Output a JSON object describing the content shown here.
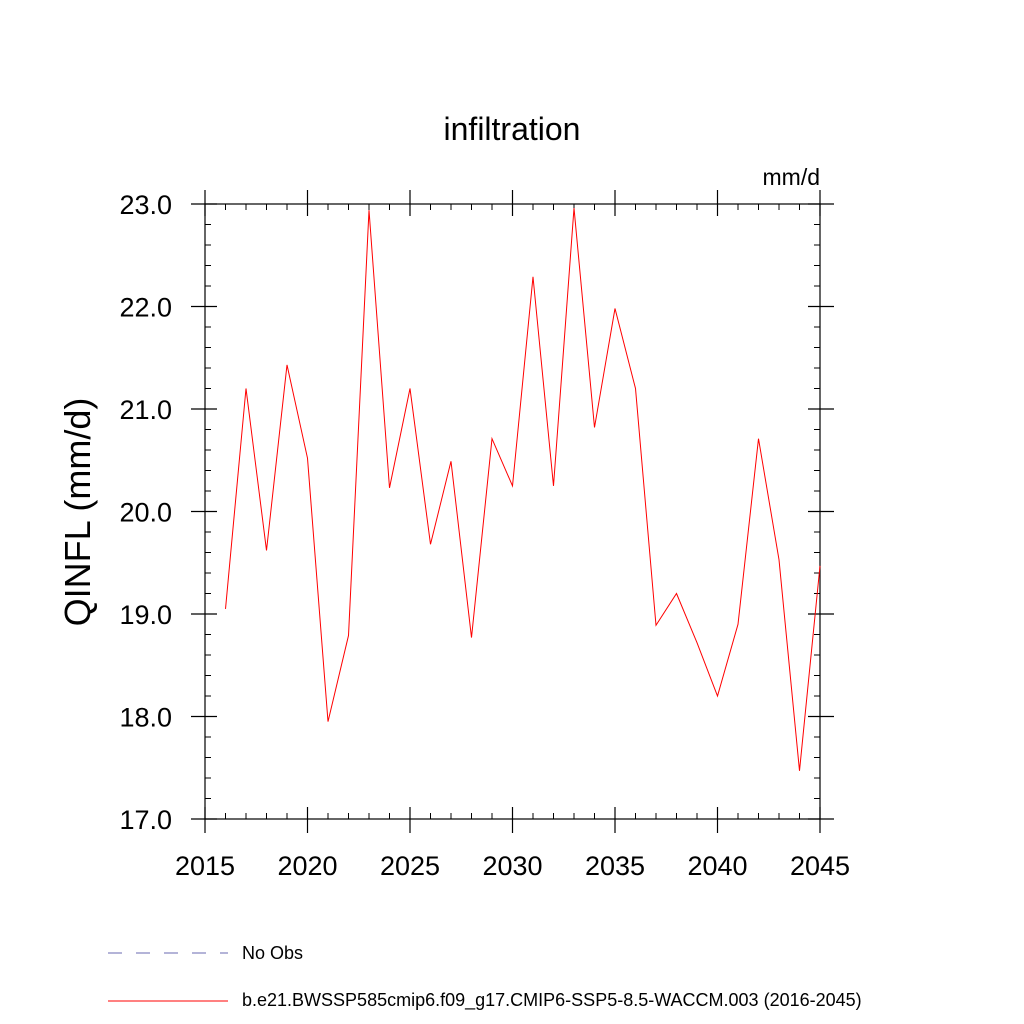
{
  "chart_data": {
    "type": "line",
    "title": "infiltration",
    "units": "mm/d",
    "xlabel": "",
    "ylabel": "QINFL  (mm/d)",
    "xlim": [
      2015,
      2045
    ],
    "ylim": [
      17.0,
      23.0
    ],
    "x_ticks": [
      2015,
      2020,
      2025,
      2030,
      2035,
      2040,
      2045
    ],
    "x_tick_labels": [
      "2015",
      "2020",
      "2025",
      "2030",
      "2035",
      "2040",
      "2045"
    ],
    "y_ticks": [
      17.0,
      18.0,
      19.0,
      20.0,
      21.0,
      22.0,
      23.0
    ],
    "y_tick_labels": [
      "17.0",
      "18.0",
      "19.0",
      "20.0",
      "21.0",
      "22.0",
      "23.0"
    ],
    "x_minor_step": 1,
    "y_minor_step": 0.2,
    "grid": false,
    "series": [
      {
        "name": "b.e21.BWSSP585cmip6.f09_g17.CMIP6-SSP5-8.5-WACCM.003 (2016-2045)",
        "color": "#ff0000",
        "style": "solid",
        "x": [
          2016,
          2017,
          2018,
          2019,
          2020,
          2021,
          2022,
          2023,
          2024,
          2025,
          2026,
          2027,
          2028,
          2029,
          2030,
          2031,
          2032,
          2033,
          2034,
          2035,
          2036,
          2037,
          2038,
          2039,
          2040,
          2041,
          2042,
          2043,
          2044,
          2045
        ],
        "values": [
          19.05,
          21.2,
          19.62,
          21.43,
          20.52,
          17.95,
          18.79,
          22.94,
          20.23,
          21.2,
          19.68,
          20.49,
          18.77,
          20.71,
          20.25,
          22.29,
          20.25,
          22.96,
          20.82,
          21.98,
          21.2,
          18.89,
          19.2,
          18.72,
          18.2,
          18.9,
          20.71,
          19.53,
          17.47,
          19.47
        ]
      }
    ],
    "legend": [
      {
        "label": "No Obs",
        "color": "#6a6ab0",
        "style": "dashed"
      },
      {
        "label": "b.e21.BWSSP585cmip6.f09_g17.CMIP6-SSP5-8.5-WACCM.003 (2016-2045)",
        "color": "#ff0000",
        "style": "solid"
      }
    ],
    "legend_position": "bottom-left"
  }
}
